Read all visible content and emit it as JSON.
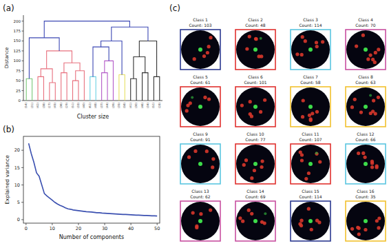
{
  "panel_labels": [
    "(a)",
    "(b)",
    "(c)"
  ],
  "chart_data": [
    {
      "type": "dendrogram",
      "x_label": "Cluster size",
      "y_label": "Distance",
      "categories": [
        "(54)",
        "(31)",
        "(42)",
        "(38)",
        "(27)",
        "(45)",
        "(36)",
        "(29)",
        "(51)",
        "(33)",
        "(40)",
        "(62)",
        "(48)",
        "(37)",
        "(44)",
        "(39)",
        "(35)",
        "(58)",
        "(41)",
        "(30)",
        "(46)",
        "(34)",
        "(52)",
        "(28)"
      ],
      "ylim": [
        0,
        215
      ],
      "yticks": [
        0,
        25,
        50,
        75,
        100,
        125,
        150,
        175,
        200
      ],
      "links": [
        {
          "left": 2,
          "right": 3,
          "height": 60,
          "color": "#e8707e"
        },
        {
          "left": 4,
          "right": 5,
          "height": 45,
          "color": "#e8707e"
        },
        {
          "left": 24,
          "right": 25,
          "height": 80,
          "color": "#e8707e"
        },
        {
          "left": 6,
          "right": 7,
          "height": 70,
          "color": "#e8707e"
        },
        {
          "left": 8,
          "right": 9,
          "height": 50,
          "color": "#e8707e"
        },
        {
          "left": 28,
          "right": 10,
          "height": 75,
          "color": "#e8707e"
        },
        {
          "left": 27,
          "right": 29,
          "height": 95,
          "color": "#e8707e"
        },
        {
          "left": 26,
          "right": 30,
          "height": 125,
          "color": "#e8707e"
        },
        {
          "left": 0,
          "right": 1,
          "height": 55,
          "color": "#78c878"
        },
        {
          "left": 32,
          "right": 31,
          "height": 158,
          "color": "#3c48b4"
        },
        {
          "left": 11,
          "right": 12,
          "height": 60,
          "color": "#6cd2e2"
        },
        {
          "left": 13,
          "right": 14,
          "height": 70,
          "color": "#b45ac8"
        },
        {
          "left": 35,
          "right": 15,
          "height": 100,
          "color": "#b45ac8"
        },
        {
          "left": 34,
          "right": 36,
          "height": 135,
          "color": "#3c48b4"
        },
        {
          "left": 16,
          "right": 17,
          "height": 65,
          "color": "#e6e064"
        },
        {
          "left": 37,
          "right": 38,
          "height": 150,
          "color": "#3c48b4"
        },
        {
          "left": 18,
          "right": 19,
          "height": 55,
          "color": "#333333"
        },
        {
          "left": 20,
          "right": 21,
          "height": 70,
          "color": "#333333"
        },
        {
          "left": 40,
          "right": 41,
          "height": 110,
          "color": "#333333"
        },
        {
          "left": 22,
          "right": 23,
          "height": 60,
          "color": "#333333"
        },
        {
          "left": 42,
          "right": 43,
          "height": 150,
          "color": "#333333"
        },
        {
          "left": 39,
          "right": 44,
          "height": 185,
          "color": "#3c48b4"
        },
        {
          "left": 33,
          "right": 45,
          "height": 200,
          "color": "#3c48b4"
        }
      ]
    },
    {
      "type": "line",
      "x_label": "Number of components",
      "y_label": "Explained variance",
      "x": [
        1,
        2,
        3,
        4,
        5,
        6,
        7,
        8,
        9,
        10,
        11,
        12,
        13,
        14,
        15,
        16,
        17,
        18,
        19,
        20,
        21,
        22,
        23,
        24,
        25,
        26,
        27,
        28,
        29,
        30,
        31,
        32,
        33,
        34,
        35,
        36,
        37,
        38,
        39,
        40,
        41,
        42,
        43,
        44,
        45,
        46,
        47,
        48,
        49,
        50
      ],
      "values": [
        22,
        19,
        16.5,
        13.5,
        12.5,
        10,
        7.5,
        6.8,
        6.2,
        5.6,
        5.0,
        4.5,
        4.1,
        3.8,
        3.4,
        3.1,
        3.0,
        2.8,
        2.7,
        2.6,
        2.5,
        2.4,
        2.3,
        2.25,
        2.2,
        2.1,
        2.0,
        2.0,
        1.9,
        1.85,
        1.8,
        1.75,
        1.7,
        1.65,
        1.6,
        1.55,
        1.5,
        1.5,
        1.45,
        1.4,
        1.35,
        1.3,
        1.3,
        1.25,
        1.2,
        1.2,
        1.15,
        1.1,
        1.1,
        1.05
      ],
      "color": "#3a4fb0",
      "xlim": [
        -1,
        51
      ],
      "ylim": [
        -1,
        24
      ],
      "xticks": [
        0,
        10,
        20,
        30,
        40,
        50
      ],
      "yticks": [
        0,
        5,
        10,
        15,
        20
      ]
    }
  ],
  "classes": [
    {
      "title": "Class 1",
      "count": "Count: 103",
      "color": "#2b3990"
    },
    {
      "title": "Class 2",
      "count": "Count: 48",
      "color": "#e0312f"
    },
    {
      "title": "Class 3",
      "count": "Count: 114",
      "color": "#5bc6e0"
    },
    {
      "title": "Class 4",
      "count": "Count: 70",
      "color": "#c84fa0"
    },
    {
      "title": "Class 5",
      "count": "Count: 61",
      "color": "#e0312f"
    },
    {
      "title": "Class 6",
      "count": "Count: 101",
      "color": "#e0312f"
    },
    {
      "title": "Class 7",
      "count": "Count: 58",
      "color": "#f2c12e"
    },
    {
      "title": "Class 8",
      "count": "Count: 63",
      "color": "#f2c12e"
    },
    {
      "title": "Class 9",
      "count": "Count: 91",
      "color": "#5bc6e0"
    },
    {
      "title": "Class 10",
      "count": "Count: 77",
      "color": "#e0312f"
    },
    {
      "title": "Class 11",
      "count": "Count: 107",
      "color": "#e0312f"
    },
    {
      "title": "Class 12",
      "count": "Count: 66",
      "color": "#5bc6e0"
    },
    {
      "title": "Class 13",
      "count": "Count: 62",
      "color": "#c84fa0"
    },
    {
      "title": "Class 14",
      "count": "Count: 69",
      "color": "#c84fa0"
    },
    {
      "title": "Class 15",
      "count": "Count: 114",
      "color": "#2b3990"
    },
    {
      "title": "Class 16",
      "count": "Count: 35",
      "color": "#f2c12e"
    }
  ]
}
